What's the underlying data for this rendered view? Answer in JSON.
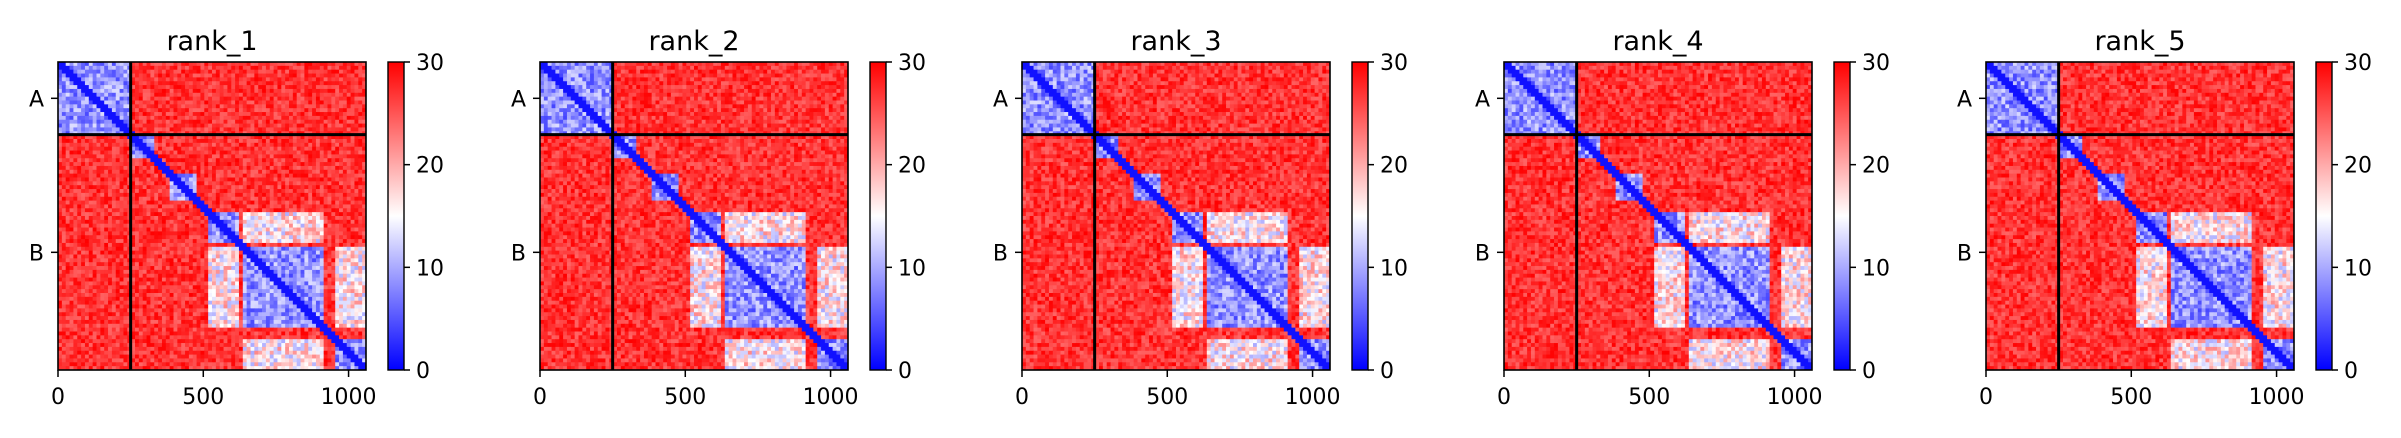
{
  "chart_data": [
    {
      "type": "heatmap",
      "title": "rank_1",
      "x_ticks": [
        0,
        500,
        1000
      ],
      "y_ticks": [
        "A",
        "B"
      ],
      "xlim": [
        0,
        1060
      ],
      "chain_boundaries": [
        0,
        250,
        1060
      ],
      "colorbar": {
        "ticks": [
          0,
          10,
          20,
          30
        ],
        "range": [
          0,
          30
        ],
        "colormap": "bwr"
      }
    },
    {
      "type": "heatmap",
      "title": "rank_2",
      "x_ticks": [
        0,
        500,
        1000
      ],
      "y_ticks": [
        "A",
        "B"
      ],
      "xlim": [
        0,
        1060
      ],
      "chain_boundaries": [
        0,
        250,
        1060
      ],
      "colorbar": {
        "ticks": [
          0,
          10,
          20,
          30
        ],
        "range": [
          0,
          30
        ],
        "colormap": "bwr"
      }
    },
    {
      "type": "heatmap",
      "title": "rank_3",
      "x_ticks": [
        0,
        500,
        1000
      ],
      "y_ticks": [
        "A",
        "B"
      ],
      "xlim": [
        0,
        1060
      ],
      "chain_boundaries": [
        0,
        250,
        1060
      ],
      "colorbar": {
        "ticks": [
          0,
          10,
          20,
          30
        ],
        "range": [
          0,
          30
        ],
        "colormap": "bwr"
      }
    },
    {
      "type": "heatmap",
      "title": "rank_4",
      "x_ticks": [
        0,
        500,
        1000
      ],
      "y_ticks": [
        "A",
        "B"
      ],
      "xlim": [
        0,
        1060
      ],
      "chain_boundaries": [
        0,
        250,
        1060
      ],
      "colorbar": {
        "ticks": [
          0,
          10,
          20,
          30
        ],
        "range": [
          0,
          30
        ],
        "colormap": "bwr"
      }
    },
    {
      "type": "heatmap",
      "title": "rank_5",
      "x_ticks": [
        0,
        500,
        1000
      ],
      "y_ticks": [
        "A",
        "B"
      ],
      "xlim": [
        0,
        1060
      ],
      "chain_boundaries": [
        0,
        250,
        1060
      ],
      "colorbar": {
        "ticks": [
          0,
          10,
          20,
          30
        ],
        "range": [
          0,
          30
        ],
        "colormap": "bwr"
      }
    }
  ],
  "colors": {
    "low": "#0000ff",
    "mid": "#ffffff",
    "high": "#ff0000",
    "divider": "#000000"
  },
  "domains": [
    {
      "start": 0,
      "end": 250
    },
    {
      "start": 250,
      "end": 330
    },
    {
      "start": 380,
      "end": 480
    },
    {
      "start": 520,
      "end": 620
    },
    {
      "start": 630,
      "end": 920
    },
    {
      "start": 950,
      "end": 1060
    }
  ]
}
